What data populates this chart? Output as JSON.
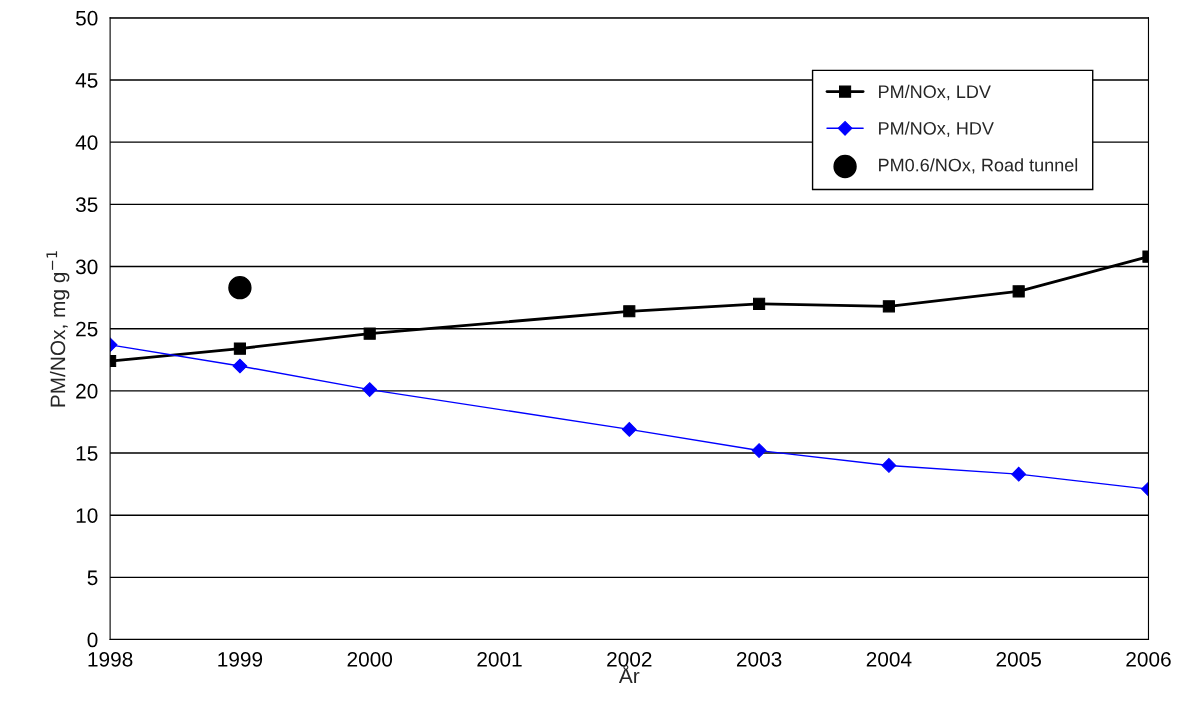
{
  "chart_data": {
    "type": "line",
    "xlabel": "År",
    "ylabel": "PM/NOx, mg g$^{−1}$",
    "x": [
      1998,
      1999,
      2000,
      2002,
      2003,
      2004,
      2005,
      2006
    ],
    "series": [
      {
        "name": "PM/NOx, LDV",
        "color": "#000000",
        "marker": "square",
        "values": [
          22.4,
          23.4,
          24.6,
          26.4,
          27.0,
          26.8,
          28.0,
          30.8
        ]
      },
      {
        "name": "PM/NOx, HDV",
        "color": "#0000ff",
        "marker": "diamond",
        "values": [
          23.7,
          22.0,
          20.1,
          16.9,
          15.2,
          14.0,
          13.3,
          12.1
        ]
      },
      {
        "name": "PM0.6/NOx, Road tunnel",
        "type": "scatter",
        "color": "#000000",
        "marker": "circle",
        "x": [
          1999
        ],
        "values": [
          28.3
        ]
      }
    ],
    "xlim": [
      1998,
      2006
    ],
    "xticks": [
      1998,
      1999,
      2000,
      2001,
      2002,
      2003,
      2004,
      2005,
      2006
    ],
    "ylim": [
      0,
      50
    ],
    "yticks": [
      0,
      5,
      10,
      15,
      20,
      25,
      30,
      35,
      40,
      45,
      50
    ],
    "grid": "y",
    "legend": "top right",
    "line_style": "solid"
  }
}
